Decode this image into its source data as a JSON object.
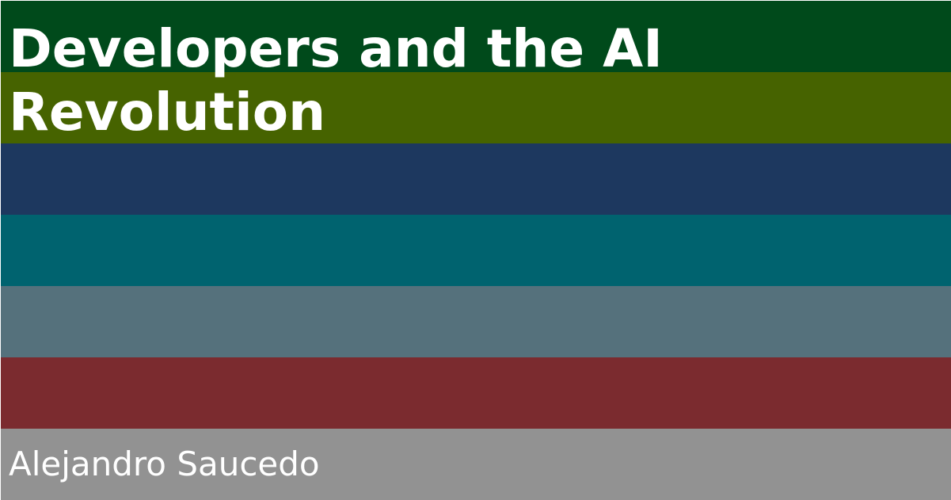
{
  "title": "Developers and the AI Revolution",
  "author": "Alejandro Saucedo",
  "colors": {
    "stripe_1": "#004a1b",
    "stripe_2": "#466300",
    "stripe_3": "#1d385f",
    "stripe_4": "#00636f",
    "stripe_5": "#55717c",
    "stripe_6": "#7b2b2f",
    "stripe_7": "#929292",
    "text": "#ffffff"
  }
}
